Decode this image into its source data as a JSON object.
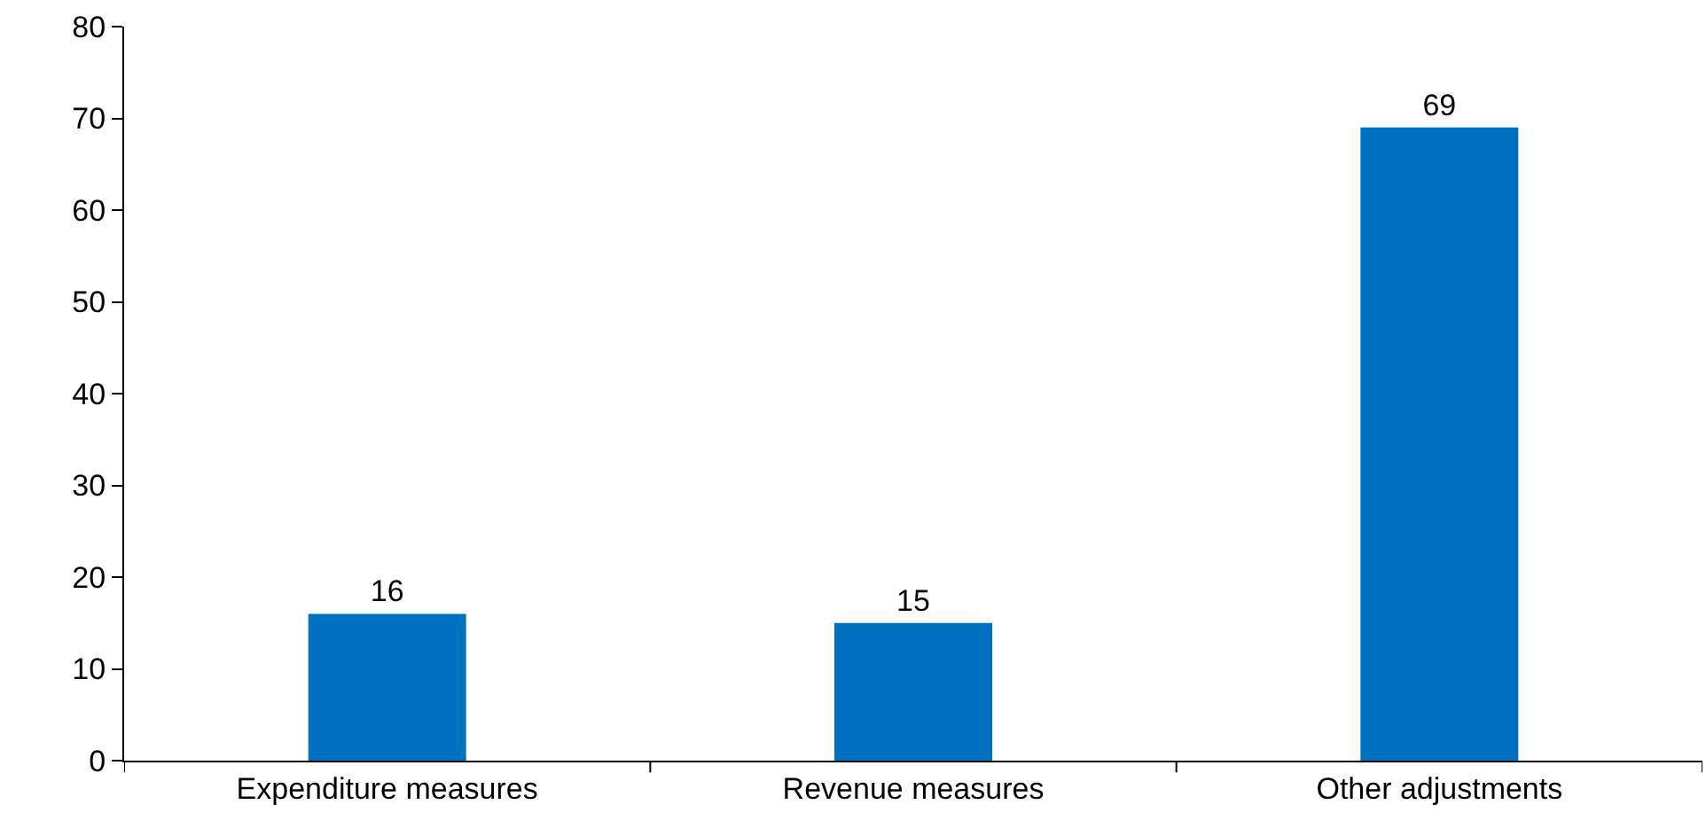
{
  "chart_data": {
    "type": "bar",
    "categories": [
      "Expenditure measures",
      "Revenue measures",
      "Other adjustments"
    ],
    "values": [
      16,
      15,
      69
    ],
    "color": "#0070c0",
    "ylim": [
      0,
      80
    ],
    "yticks": [
      0,
      10,
      20,
      30,
      40,
      50,
      60,
      70,
      80
    ],
    "data_labels": true,
    "grid": false,
    "legend": false
  }
}
